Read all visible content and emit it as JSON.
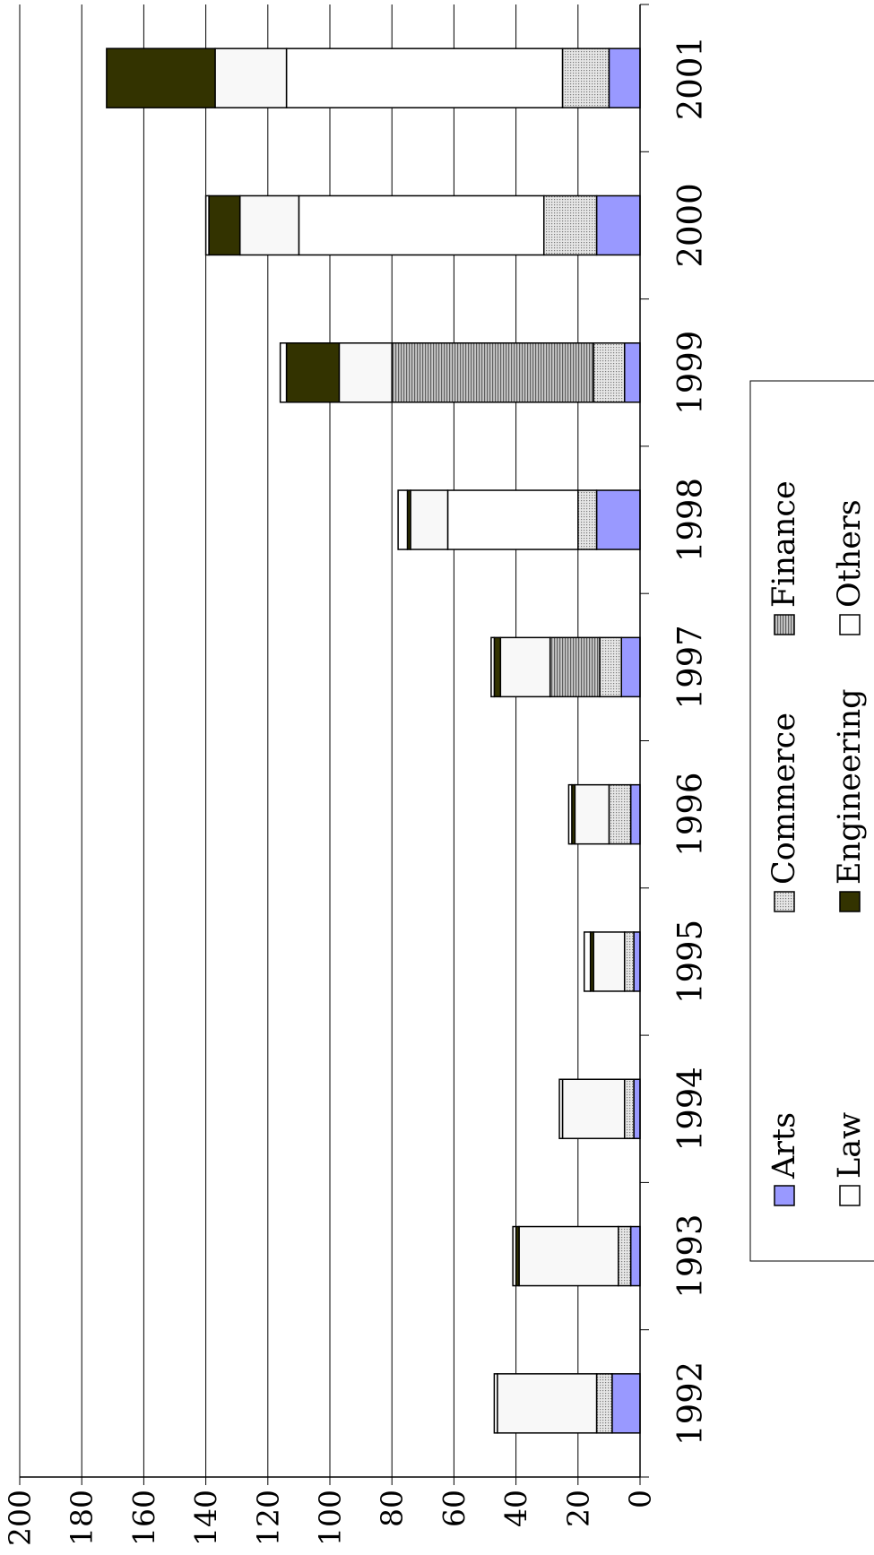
{
  "chart_data": {
    "type": "bar",
    "orientation": "vertical-stacked (rotated 90 degrees clockwise)",
    "categories": [
      "1992",
      "1993",
      "1994",
      "1995",
      "1996",
      "1997",
      "1998",
      "1999",
      "2000",
      "2001"
    ],
    "ylim": [
      0,
      200
    ],
    "yticks": [
      0,
      20,
      40,
      60,
      80,
      100,
      120,
      140,
      160,
      180,
      200
    ],
    "grid": true,
    "legend": "bottom-right",
    "series": [
      {
        "name": "Arts",
        "color": "#9999ff",
        "pattern": "solid",
        "values": [
          9,
          3,
          2,
          2,
          3,
          6,
          14,
          5,
          14,
          10
        ]
      },
      {
        "name": "Commerce",
        "color": "#d0d0d0",
        "pattern": "dots",
        "values": [
          5,
          4,
          3,
          3,
          7,
          7,
          6,
          10,
          17,
          15
        ]
      },
      {
        "name": "Finance",
        "color": "#a0a0a0",
        "pattern": "lines",
        "values": [
          0,
          0,
          0,
          0,
          0,
          16,
          0,
          65,
          0,
          0
        ]
      },
      {
        "name": "Law",
        "color": "#ffffff",
        "pattern": "solid",
        "values": [
          0,
          0,
          0,
          0,
          0,
          0,
          42,
          0,
          79,
          89
        ]
      },
      {
        "name": "Others",
        "color": "#f8f8f8",
        "pattern": "solid",
        "values": [
          32,
          32,
          20,
          10,
          11,
          16,
          12,
          17,
          19,
          23
        ]
      },
      {
        "name": "Engineering",
        "color": "#333300",
        "pattern": "solid",
        "values": [
          0,
          1,
          0,
          1,
          1,
          2,
          1,
          17,
          10,
          35
        ]
      },
      {
        "name": "Others",
        "color": "#ffffff",
        "pattern": "solid",
        "values": [
          1,
          1,
          1,
          2,
          1,
          1,
          3,
          2,
          1,
          0
        ]
      }
    ],
    "legend_entries": [
      {
        "name": "Arts",
        "color": "#9999ff",
        "pattern": "solid"
      },
      {
        "name": "Commerce",
        "color": "#d0d0d0",
        "pattern": "dots"
      },
      {
        "name": "Finance",
        "color": "#a0a0a0",
        "pattern": "lines"
      },
      {
        "name": "Law",
        "color": "#ffffff",
        "pattern": "solid"
      },
      {
        "name": "Engineering",
        "color": "#333300",
        "pattern": "solid"
      },
      {
        "name": "Others",
        "color": "#ffffff",
        "pattern": "solid"
      }
    ]
  }
}
